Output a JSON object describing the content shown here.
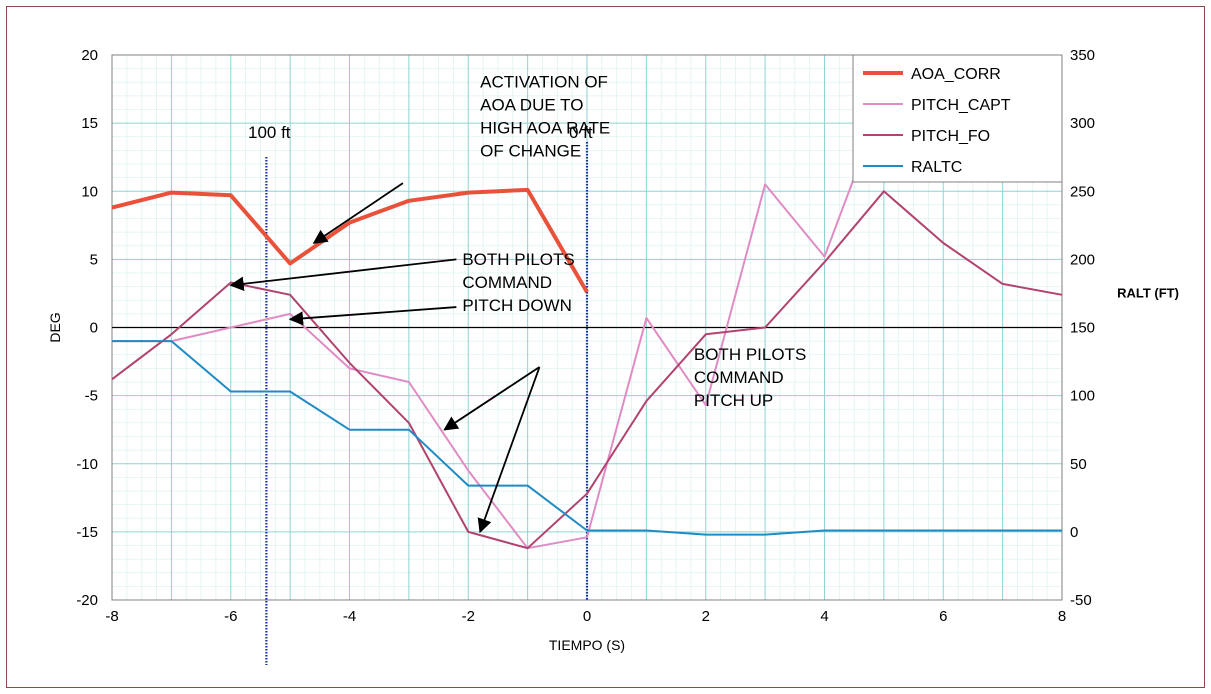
{
  "chart_data": {
    "type": "line",
    "xlabel": "TIEMPO (S)",
    "ylabel": "DEG",
    "y2label": "RALT (FT)",
    "xlim": [
      -8,
      8
    ],
    "ylim": [
      -20,
      20
    ],
    "y2lim": [
      -50,
      350
    ],
    "x_ticks": [
      -8,
      -6,
      -4,
      -2,
      0,
      2,
      4,
      6,
      8
    ],
    "y_ticks": [
      -20,
      -15,
      -10,
      -5,
      0,
      5,
      10,
      15,
      20
    ],
    "y2_ticks": [
      -50,
      0,
      50,
      100,
      150,
      200,
      250,
      300,
      350
    ],
    "grid": true,
    "legend_position": "top-right",
    "series": [
      {
        "name": "AOA_CORR",
        "axis": "left",
        "color": "#e8523a",
        "points": [
          [
            -8,
            8.8
          ],
          [
            -7,
            9.9
          ],
          [
            -6,
            9.7
          ],
          [
            -5,
            4.7
          ],
          [
            -4,
            7.7
          ],
          [
            -3,
            9.3
          ],
          [
            -2,
            9.9
          ],
          [
            -1,
            10.1
          ],
          [
            0,
            2.6
          ]
        ]
      },
      {
        "name": "PITCH_CAPT",
        "axis": "left",
        "color": "#e08cc4",
        "points": [
          [
            -8,
            -1.0
          ],
          [
            -7,
            -1.0
          ],
          [
            -6,
            0.0
          ],
          [
            -5,
            1.0
          ],
          [
            -4,
            -3.0
          ],
          [
            -3,
            -4.0
          ],
          [
            -2,
            -10.5
          ],
          [
            -1,
            -16.2
          ],
          [
            0,
            -15.4
          ],
          [
            1,
            0.7
          ],
          [
            2,
            -5.7
          ],
          [
            3,
            10.5
          ],
          [
            4,
            5.2
          ],
          [
            4.5,
            11.0
          ]
        ]
      },
      {
        "name": "PITCH_FO",
        "axis": "left",
        "color": "#b2436f",
        "points": [
          [
            -8,
            -3.8
          ],
          [
            -7,
            -0.5
          ],
          [
            -6,
            3.3
          ],
          [
            -5,
            2.4
          ],
          [
            -4,
            -2.6
          ],
          [
            -3,
            -7.0
          ],
          [
            -2,
            -15.0
          ],
          [
            -1,
            -16.2
          ],
          [
            0,
            -12.2
          ],
          [
            1,
            -5.4
          ],
          [
            2,
            -0.5
          ],
          [
            3,
            0.0
          ],
          [
            4,
            4.8
          ],
          [
            5,
            10.0
          ],
          [
            6,
            6.2
          ],
          [
            7,
            3.2
          ],
          [
            8,
            2.4
          ]
        ]
      },
      {
        "name": "RALTC",
        "axis": "right",
        "color": "#1f8bc4",
        "points": [
          [
            -8,
            140
          ],
          [
            -7,
            140
          ],
          [
            -6,
            103
          ],
          [
            -5,
            103
          ],
          [
            -4,
            75
          ],
          [
            -3,
            75
          ],
          [
            -2,
            34
          ],
          [
            -1,
            34
          ],
          [
            0,
            1
          ],
          [
            1,
            1
          ],
          [
            2,
            -2
          ],
          [
            3,
            -2
          ],
          [
            4,
            1
          ],
          [
            5,
            1
          ],
          [
            6,
            1
          ],
          [
            7,
            1
          ],
          [
            8,
            1
          ]
        ]
      }
    ],
    "vertical_markers": [
      {
        "label": "100 ft",
        "x": -5.4
      },
      {
        "label": "0 ft",
        "x": 0
      }
    ],
    "annotations": [
      {
        "lines": [
          "ACTIVATION OF",
          "AOA DUE TO",
          "HIGH AOA RATE",
          "OF CHANGE"
        ],
        "text_at": [
          -1.8,
          17.6
        ],
        "arrows": [
          {
            "from": [
              -3.1,
              10.6
            ],
            "to": [
              -4.6,
              6.2
            ]
          }
        ]
      },
      {
        "lines": [
          "BOTH PILOTS",
          "COMMAND",
          "PITCH DOWN"
        ],
        "text_at": [
          -2.1,
          4.6
        ],
        "arrows": [
          {
            "from": [
              -2.2,
              5.0
            ],
            "to": [
              -6.0,
              3.1
            ]
          },
          {
            "from": [
              -2.2,
              1.5
            ],
            "to": [
              -5.0,
              0.6
            ]
          }
        ]
      },
      {
        "lines": [
          "BOTH PILOTS",
          "COMMAND",
          "PITCH UP"
        ],
        "text_at": [
          1.8,
          -2.4
        ],
        "arrows": [
          {
            "from": [
              -0.8,
              -2.9
            ],
            "to": [
              -2.4,
              -7.5
            ]
          },
          {
            "from": [
              -0.8,
              -2.9
            ],
            "to": [
              -1.8,
              -15.0
            ]
          }
        ]
      }
    ]
  }
}
